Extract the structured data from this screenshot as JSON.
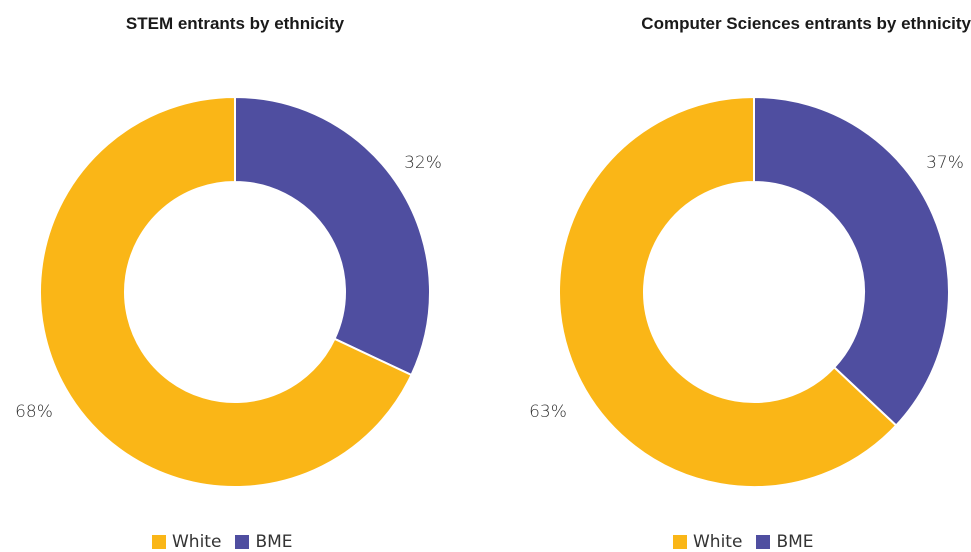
{
  "chart_data": [
    {
      "type": "pie",
      "title": "STEM entrants by ethnicity",
      "categories": [
        "BME",
        "White"
      ],
      "values": [
        32,
        68
      ],
      "labels": [
        "32%",
        "68%"
      ],
      "colors": [
        "#4f4ea0",
        "#fab617"
      ],
      "legend": {
        "placement": "bottom-center",
        "entries": [
          {
            "label": "White",
            "color": "#fab617"
          },
          {
            "label": "BME",
            "color": "#4f4ea0"
          }
        ]
      }
    },
    {
      "type": "pie",
      "title": "Computer Sciences entrants by ethnicity",
      "categories": [
        "BME",
        "White"
      ],
      "values": [
        37,
        63
      ],
      "labels": [
        "37%",
        "63%"
      ],
      "colors": [
        "#4f4ea0",
        "#fab617"
      ],
      "legend": {
        "placement": "bottom-center",
        "entries": [
          {
            "label": "White",
            "color": "#fab617"
          },
          {
            "label": "BME",
            "color": "#4f4ea0"
          }
        ]
      }
    }
  ]
}
